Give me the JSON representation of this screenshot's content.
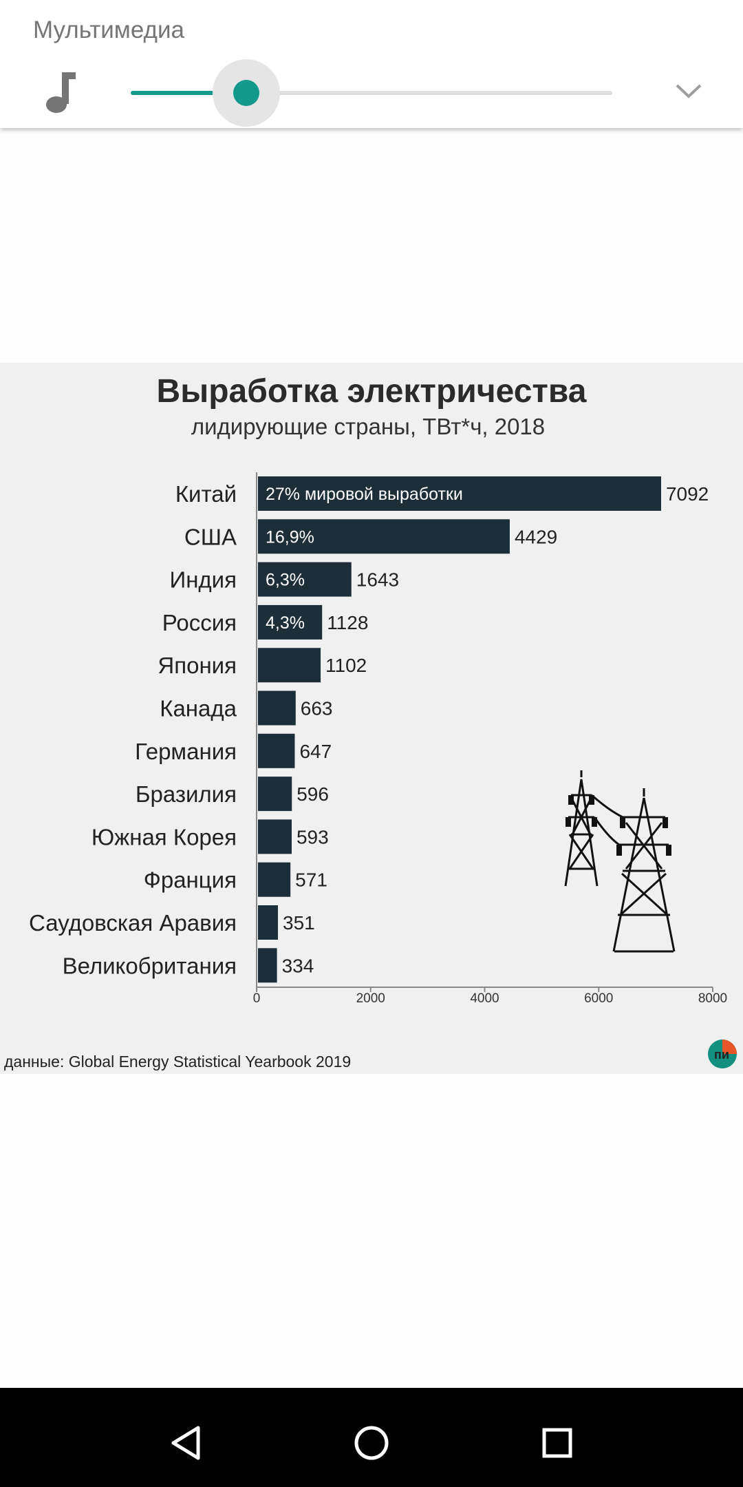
{
  "volume_panel": {
    "title": "Мультимедиа",
    "level_fraction": 0.24
  },
  "chart_data": {
    "type": "bar",
    "orientation": "horizontal",
    "title": "Выработка электричества",
    "subtitle": "лидирующие страны, ТВт*ч, 2018",
    "categories": [
      "Китай",
      "США",
      "Индия",
      "Россия",
      "Япония",
      "Канада",
      "Германия",
      "Бразилия",
      "Южная Корея",
      "Франция",
      "Саудовская Аравия",
      "Великобритания"
    ],
    "values": [
      7092,
      4429,
      1643,
      1128,
      1102,
      663,
      647,
      596,
      593,
      571,
      351,
      334
    ],
    "inside_labels": [
      "27% мировой выработки",
      "16,9%",
      "6,3%",
      "4,3%",
      "",
      "",
      "",
      "",
      "",
      "",
      "",
      ""
    ],
    "x_ticks": [
      0,
      2000,
      4000,
      6000,
      8000
    ],
    "xlim": [
      0,
      8000
    ],
    "grid": false,
    "legend": "none",
    "bar_color": "#1c2e38",
    "source": "данные: Global Energy Statistical Yearbook 2019",
    "logo_text": "пи"
  },
  "nav": {
    "back": "back-icon",
    "home": "home-icon",
    "recents": "recents-icon"
  },
  "colors": {
    "accent": "#139a8d",
    "chart_background": "#f0f0f0"
  }
}
